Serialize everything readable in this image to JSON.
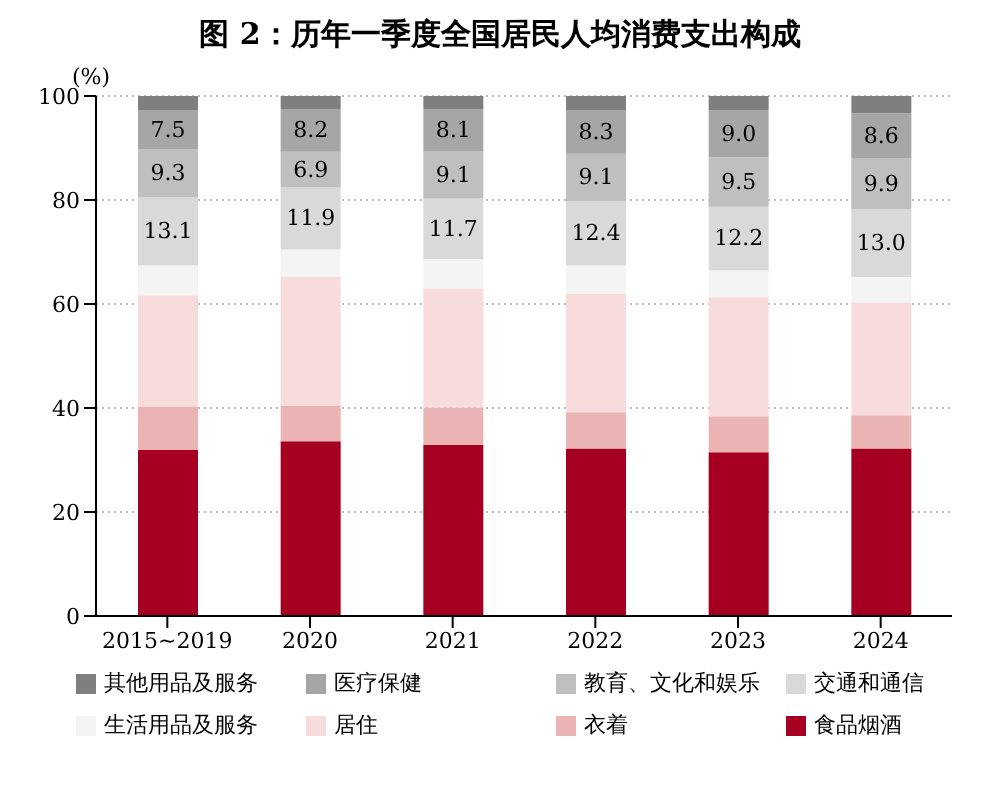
{
  "chart_data": {
    "type": "bar",
    "title": "图 2：历年一季度全国居民人均消费支出构成",
    "ylabel": "(%)",
    "categories": [
      "2015~2019",
      "2020",
      "2021",
      "2022",
      "2023",
      "2024"
    ],
    "stacked": true,
    "ylim": [
      0,
      100
    ],
    "yticks": [
      0,
      20,
      40,
      60,
      80,
      100
    ],
    "grid": "y",
    "legend": "bottom",
    "series": [
      {
        "name": "食品烟酒",
        "color": "#a50021",
        "values": [
          31.9,
          33.6,
          32.9,
          32.2,
          31.5,
          32.2
        ]
      },
      {
        "name": "衣着",
        "color": "#ebb4b4",
        "values": [
          8.4,
          6.8,
          7.2,
          7.0,
          6.9,
          6.4
        ]
      },
      {
        "name": "居住",
        "color": "#f8dcdc",
        "values": [
          21.4,
          24.9,
          22.9,
          22.8,
          22.9,
          21.7
        ]
      },
      {
        "name": "生活用品及服务",
        "color": "#f4f4f4",
        "values": [
          5.7,
          5.2,
          5.6,
          5.4,
          5.2,
          4.9
        ]
      },
      {
        "name": "交通和通信",
        "color": "#d9d9d9",
        "values": [
          13.1,
          11.9,
          11.7,
          12.4,
          12.2,
          13.0
        ],
        "value_labels": [
          "13.1",
          "11.9",
          "11.7",
          "12.4",
          "12.2",
          "13.0"
        ]
      },
      {
        "name": "教育、文化和娱乐",
        "color": "#bfbfbf",
        "values": [
          9.3,
          6.9,
          9.1,
          9.1,
          9.5,
          9.9
        ],
        "value_labels": [
          "9.3",
          "6.9",
          "9.1",
          "9.1",
          "9.5",
          "9.9"
        ]
      },
      {
        "name": "医疗保健",
        "color": "#a6a6a6",
        "values": [
          7.5,
          8.2,
          8.1,
          8.3,
          9.0,
          8.6
        ],
        "value_labels": [
          "7.5",
          "8.2",
          "8.1",
          "8.3",
          "9.0",
          "8.6"
        ]
      },
      {
        "name": "其他用品及服务",
        "color": "#7f7f7f",
        "values": [
          2.7,
          2.5,
          2.5,
          2.8,
          2.8,
          3.3
        ]
      }
    ]
  }
}
